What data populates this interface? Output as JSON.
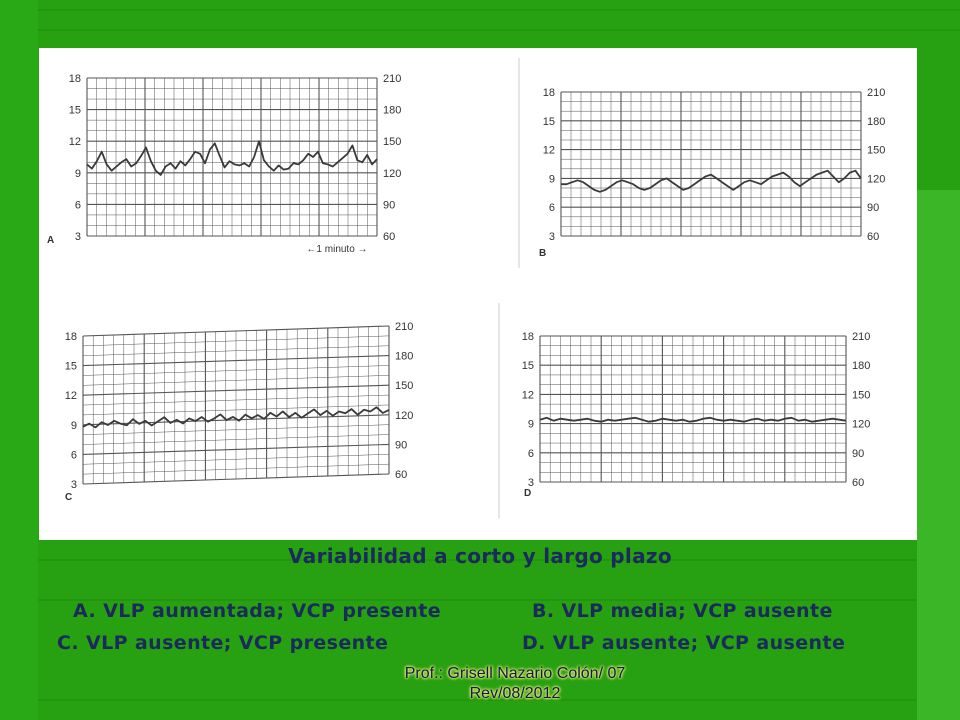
{
  "chart_data": [
    {
      "type": "line",
      "panel_label": "A",
      "left_ticks": [
        "18",
        "15",
        "12",
        "9",
        "6",
        "3"
      ],
      "right_ticks": [
        "210",
        "180",
        "150",
        "120",
        "90",
        "60"
      ],
      "annotation": "←1 minuto →",
      "description_values": {
        "baseline": 125,
        "variability": "large"
      },
      "series": [
        {
          "values": [
            128,
            124,
            131,
            140,
            128,
            122,
            126,
            130,
            133,
            126,
            129,
            136,
            144,
            131,
            122,
            118,
            126,
            129,
            124,
            131,
            127,
            133,
            140,
            138,
            129,
            142,
            148,
            136,
            125,
            131,
            128,
            127,
            129,
            126,
            135,
            150,
            132,
            126,
            122,
            127,
            123,
            124,
            129,
            128,
            132,
            138,
            135,
            140,
            129,
            128,
            126,
            130,
            134,
            138,
            146,
            132,
            130,
            137,
            128,
            133
          ]
        }
      ]
    },
    {
      "type": "line",
      "panel_label": "B",
      "left_ticks": [
        "18",
        "15",
        "12",
        "9",
        "6",
        "3"
      ],
      "right_ticks": [
        "210",
        "180",
        "150",
        "120",
        "90",
        "60"
      ],
      "series": [
        {
          "values": [
            114,
            114,
            116,
            118,
            116,
            112,
            108,
            106,
            108,
            112,
            116,
            118,
            116,
            114,
            110,
            108,
            110,
            114,
            118,
            120,
            116,
            112,
            108,
            110,
            114,
            118,
            122,
            124,
            120,
            116,
            112,
            108,
            112,
            116,
            118,
            116,
            114,
            118,
            122,
            124,
            126,
            122,
            116,
            112,
            116,
            120,
            124,
            126,
            128,
            122,
            116,
            120,
            126,
            128,
            120
          ]
        }
      ]
    },
    {
      "type": "line",
      "panel_label": "C",
      "left_ticks": [
        "18",
        "15",
        "12",
        "9",
        "6",
        "3"
      ],
      "right_ticks": [
        "210",
        "180",
        "150",
        "120",
        "90",
        "60"
      ],
      "series": [
        {
          "values": [
            118,
            121,
            117,
            122,
            119,
            123,
            120,
            118,
            124,
            119,
            122,
            117,
            121,
            125,
            119,
            122,
            118,
            123,
            120,
            124,
            119,
            122,
            126,
            120,
            123,
            119,
            125,
            121,
            124,
            120,
            126,
            122,
            127,
            121,
            125,
            120,
            124,
            128,
            122,
            126,
            121,
            125,
            123,
            127,
            121,
            126,
            124,
            128,
            122,
            125
          ]
        }
      ]
    },
    {
      "type": "line",
      "panel_label": "D",
      "left_ticks": [
        "18",
        "15",
        "12",
        "9",
        "6",
        "3"
      ],
      "right_ticks": [
        "210",
        "180",
        "150",
        "120",
        "90",
        "60"
      ],
      "series": [
        {
          "values": [
            124,
            126,
            123,
            125,
            124,
            123,
            124,
            125,
            123,
            122,
            124,
            123,
            124,
            125,
            126,
            124,
            122,
            123,
            125,
            124,
            123,
            124,
            122,
            123,
            125,
            126,
            124,
            123,
            124,
            123,
            122,
            124,
            125,
            123,
            124,
            123,
            125,
            126,
            123,
            124,
            122,
            123,
            124,
            125,
            124,
            123
          ]
        }
      ]
    }
  ],
  "caption": {
    "title": "Variabilidad a corto y largo plazo",
    "a": "A. VLP aumentada; VCP presente",
    "b": "B. VLP media; VCP ausente",
    "c": "C. VLP ausente; VCP presente",
    "d": "D. VLP ausente; VCP ausente"
  },
  "footer": {
    "line1": "Prof.: Grisell Nazario Colón/ 07",
    "line2": "Rev/08/2012"
  },
  "colors": {
    "background": "#27a112",
    "caption": "#1a2a5a",
    "footer_highlight": "#f6f078"
  }
}
